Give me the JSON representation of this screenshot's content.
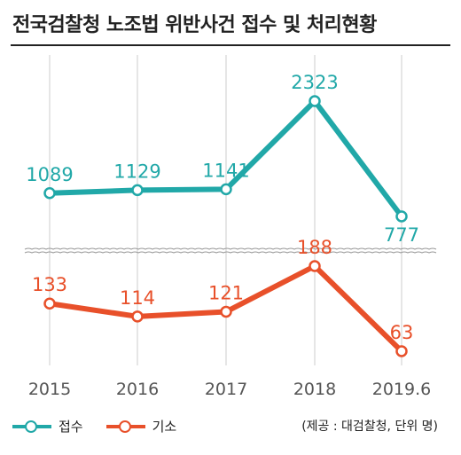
{
  "title": "전국검찰청 노조법 위반사건 접수 및 처리현황",
  "source_note": "(제공 : 대검찰청, 단위 명)",
  "colors": {
    "received": "#21a8a8",
    "prosecuted": "#e8502a"
  },
  "chart_data": {
    "type": "line",
    "title": "전국검찰청 노조법 위반사건 접수 및 처리현황",
    "categories": [
      "2015",
      "2016",
      "2017",
      "2018",
      "2019.6"
    ],
    "series": [
      {
        "name": "접수",
        "values": [
          1089,
          1129,
          1141,
          2323,
          777
        ]
      },
      {
        "name": "기소",
        "values": [
          133,
          114,
          121,
          188,
          63
        ]
      }
    ],
    "grid": "vertical",
    "axis_break": true,
    "legend": "bottom-left"
  }
}
